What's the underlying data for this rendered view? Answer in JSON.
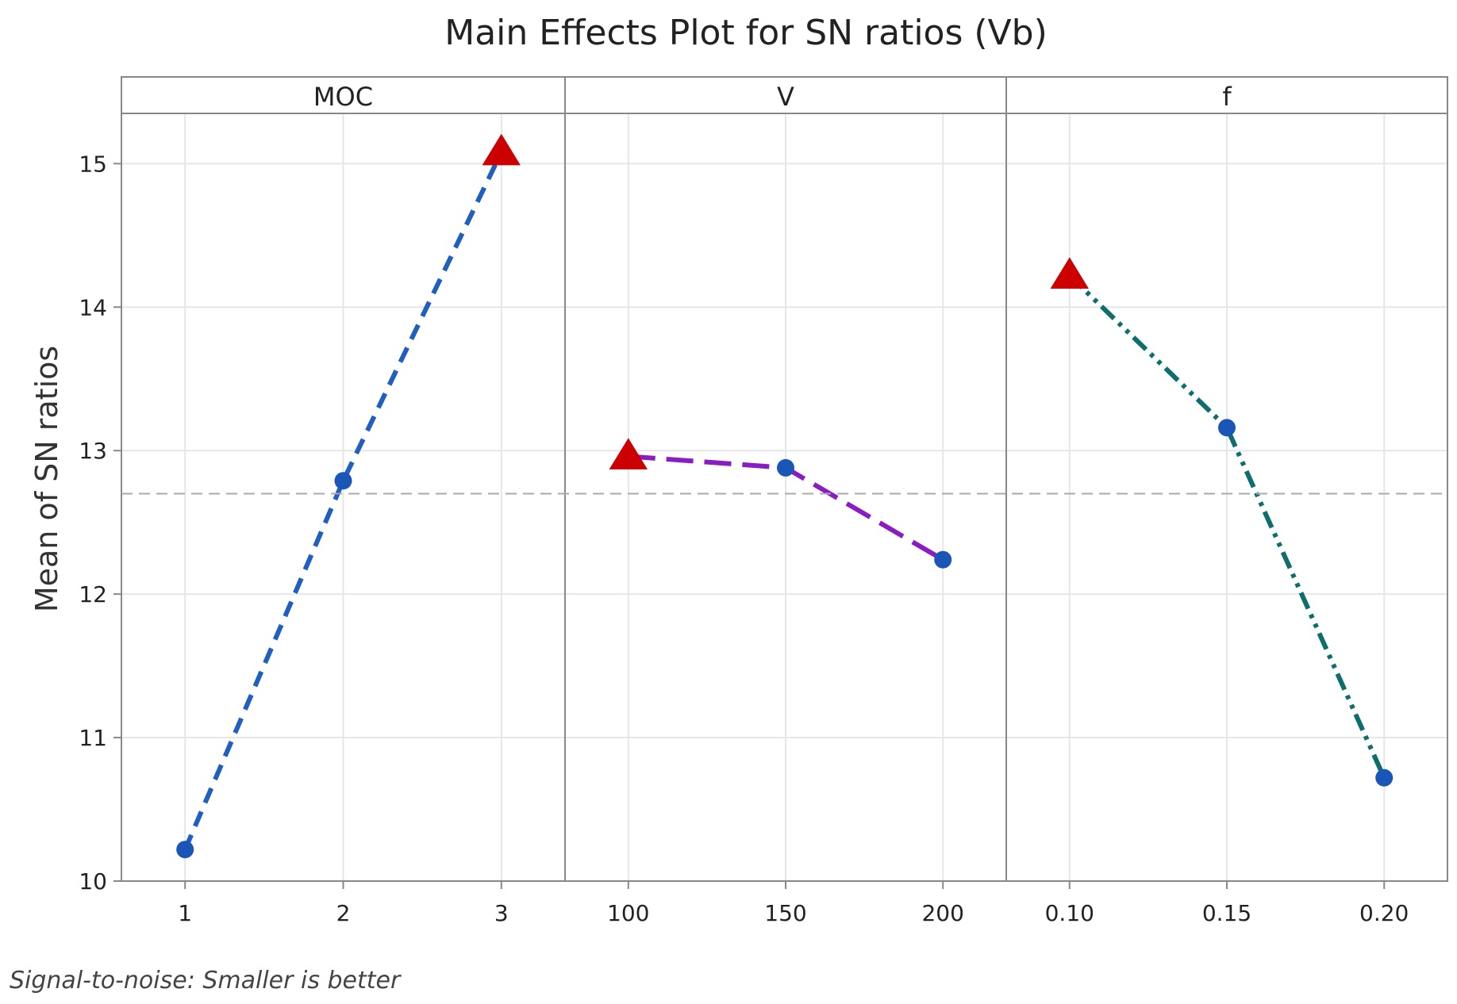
{
  "chart_data": {
    "type": "line",
    "title": "Main Effects Plot for SN ratios (Vb)",
    "ylabel": "Mean of SN ratios",
    "ylim": [
      10,
      15.35
    ],
    "yticks": [
      "10",
      "11",
      "12",
      "13",
      "14",
      "15"
    ],
    "grid": true,
    "reference_line": {
      "value": 12.7,
      "style": "dashed"
    },
    "footnote": "Signal-to-noise: Smaller is better",
    "panels": [
      {
        "name": "MOC",
        "categories": [
          "1",
          "2",
          "3"
        ],
        "values": [
          10.22,
          12.79,
          15.08
        ],
        "best_index": 2,
        "line_color": "#1f5fc0",
        "line_style": "dashed"
      },
      {
        "name": "V",
        "categories": [
          "100",
          "150",
          "200"
        ],
        "values": [
          12.96,
          12.88,
          12.24
        ],
        "best_index": 0,
        "line_color": "#8a1cc4",
        "line_style": "long-dashed"
      },
      {
        "name": "f",
        "categories": [
          "0.10",
          "0.15",
          "0.20"
        ],
        "values": [
          14.22,
          13.16,
          10.72
        ],
        "best_index": 0,
        "line_color": "#0e6e6e",
        "line_style": "dash-dot-dot"
      }
    ],
    "colors": {
      "marker_point": "#1a56b8",
      "marker_best": "#cc0000",
      "grid": "#e6e6e6",
      "frame": "#888888",
      "reference": "#aaaaaa"
    }
  }
}
